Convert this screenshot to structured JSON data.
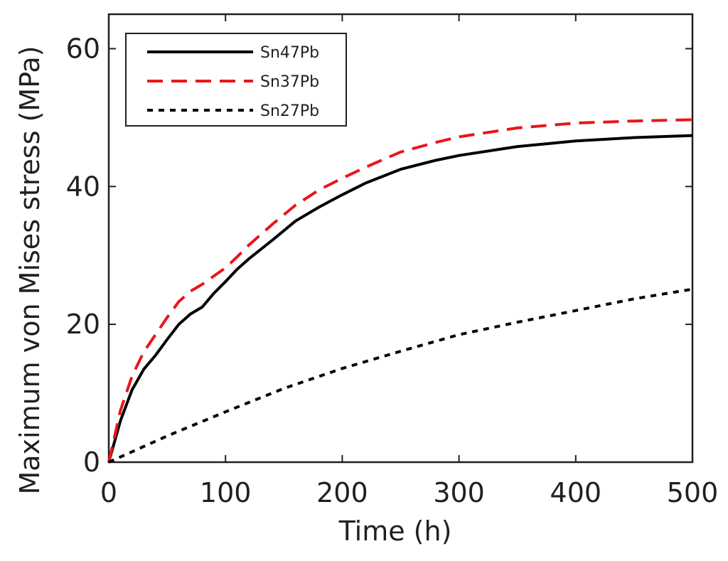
{
  "chart_data": {
    "type": "line",
    "title": "",
    "xlabel": "Time (h)",
    "ylabel": "Maximum von Mises stress (MPa)",
    "xlim": [
      0,
      500
    ],
    "ylim": [
      0,
      65
    ],
    "xticks": [
      0,
      100,
      200,
      300,
      400,
      500
    ],
    "yticks": [
      0,
      20,
      40,
      60
    ],
    "grid": false,
    "legend_position": "top-left",
    "series": [
      {
        "name": "Sn47Pb",
        "color": "#000000",
        "dash": "solid",
        "x": [
          0,
          10,
          20,
          30,
          40,
          50,
          60,
          70,
          80,
          90,
          100,
          110,
          120,
          140,
          160,
          180,
          200,
          220,
          250,
          280,
          300,
          350,
          400,
          450,
          500
        ],
        "y": [
          0,
          6,
          10.5,
          13.5,
          15.5,
          17.8,
          20,
          21.5,
          22.5,
          24.5,
          26.2,
          28,
          29.5,
          32.2,
          35,
          37,
          38.8,
          40.5,
          42.5,
          43.8,
          44.5,
          45.8,
          46.6,
          47.1,
          47.4
        ]
      },
      {
        "name": "Sn37Pb",
        "color": "#e8161b",
        "dash": "dashed",
        "x": [
          0,
          10,
          20,
          30,
          40,
          50,
          60,
          70,
          80,
          90,
          100,
          110,
          120,
          140,
          160,
          180,
          200,
          220,
          250,
          280,
          300,
          350,
          400,
          450,
          500
        ],
        "y": [
          0,
          7.5,
          12.5,
          16,
          18.5,
          21,
          23.3,
          24.8,
          25.8,
          27,
          28.2,
          29.8,
          31.5,
          34.5,
          37.3,
          39.5,
          41.2,
          42.8,
          45,
          46.4,
          47.2,
          48.5,
          49.2,
          49.5,
          49.7
        ]
      },
      {
        "name": "Sn27Pb",
        "color": "#000000",
        "dash": "dotted",
        "x": [
          0,
          50,
          100,
          150,
          200,
          250,
          300,
          350,
          400,
          450,
          500
        ],
        "y": [
          0,
          3.8,
          7.3,
          10.7,
          13.6,
          16.1,
          18.5,
          20.3,
          22,
          23.7,
          25.1
        ]
      }
    ]
  }
}
